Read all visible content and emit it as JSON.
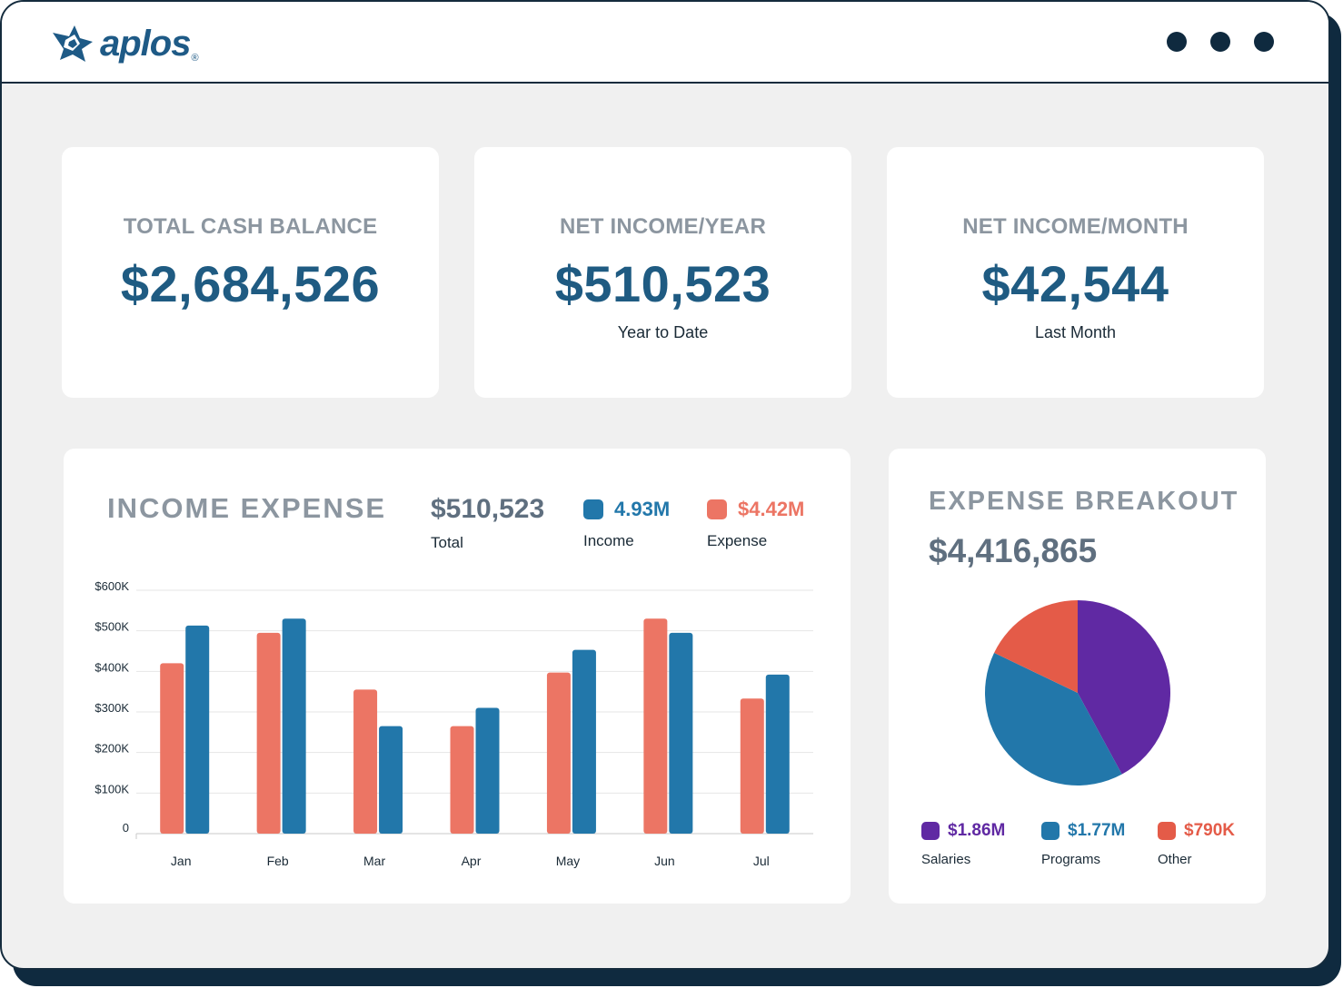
{
  "app": {
    "logo_text": "aplos",
    "logo_mark": "®"
  },
  "window_controls": [
    "dot",
    "dot",
    "dot"
  ],
  "kpis": [
    {
      "label": "TOTAL CASH BALANCE",
      "value": "$2,684,526",
      "sub": ""
    },
    {
      "label": "NET INCOME/YEAR",
      "value": "$510,523",
      "sub": "Year to Date"
    },
    {
      "label": "NET INCOME/MONTH",
      "value": "$42,544",
      "sub": "Last Month"
    }
  ],
  "income_expense": {
    "title": "INCOME EXPENSE",
    "total": {
      "value": "$510,523",
      "label": "Total"
    },
    "income": {
      "value": "4.93M",
      "label": "Income"
    },
    "expense": {
      "value": "$4.42M",
      "label": "Expense"
    }
  },
  "expense_breakout": {
    "title": "EXPENSE BREAKOUT",
    "total": "$4,416,865",
    "legend": [
      {
        "value": "$1.86M",
        "label": "Salaries"
      },
      {
        "value": "$1.77M",
        "label": "Programs"
      },
      {
        "value": "$790K",
        "label": "Other"
      }
    ]
  },
  "colors": {
    "income": "#2277aa",
    "expense": "#ec7564",
    "salaries": "#6029a3",
    "programs": "#2277aa",
    "other": "#e45b48",
    "kpi_value": "#1f5b82"
  },
  "chart_data": [
    {
      "type": "bar",
      "categories": [
        "Jan",
        "Feb",
        "Mar",
        "Apr",
        "May",
        "Jun",
        "Jul"
      ],
      "series": [
        {
          "name": "Expense",
          "values": [
            420000,
            495000,
            355000,
            265000,
            397000,
            530000,
            333000
          ]
        },
        {
          "name": "Income",
          "values": [
            513000,
            530000,
            265000,
            310000,
            453000,
            495000,
            392000
          ]
        }
      ],
      "yticks": [
        "0",
        "$100K",
        "$200K",
        "$300K",
        "$400K",
        "$500K",
        "$600K"
      ],
      "ytick_values": [
        0,
        100000,
        200000,
        300000,
        400000,
        500000,
        600000
      ],
      "ylim": [
        0,
        600000
      ],
      "grid": true
    },
    {
      "type": "pie",
      "labels": [
        "Salaries",
        "Programs",
        "Other"
      ],
      "values": [
        1.86,
        1.77,
        0.79
      ],
      "legend": "bottom"
    }
  ]
}
